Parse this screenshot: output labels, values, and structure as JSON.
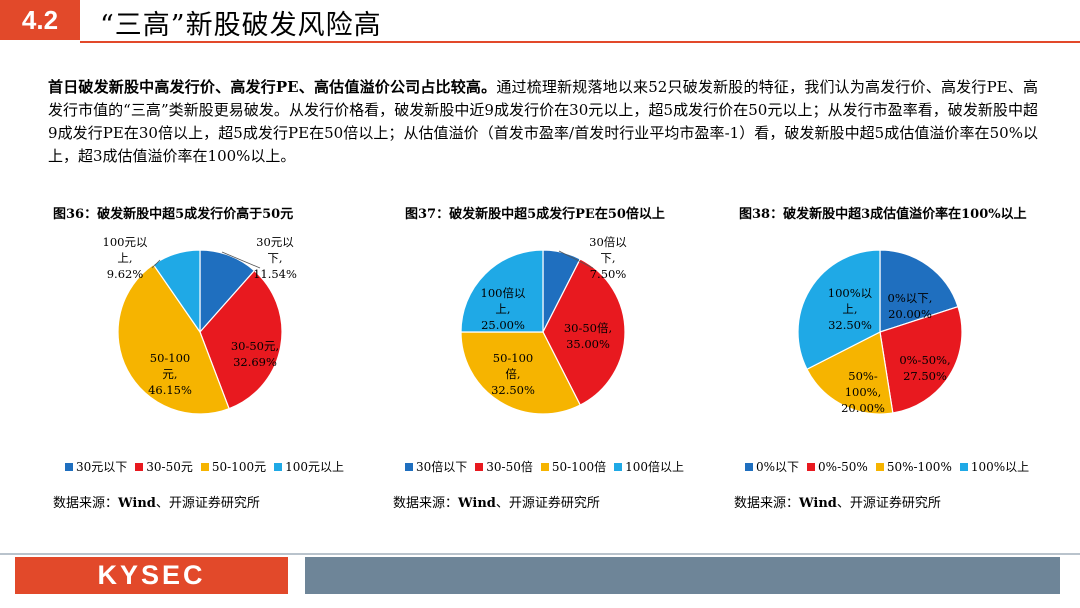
{
  "header": {
    "section_number": "4.2",
    "title": "“三高”新股破发风险高"
  },
  "intro": {
    "bold_lead": "首日破发新股中高发行价、高发行PE、高估值溢价公司占比较高。",
    "body": "通过梳理新规落地以来52只破发新股的特征，我们认为高发行价、高发行PE、高发行市值的“三高”类新股更易破发。从发行价格看，破发新股中近9成发行价在30元以上，超5成发行价在50元以上；从发行市盈率看，破发新股中超9成发行PE在30倍以上，超5成发行PE在50倍以上；从估值溢价（首发市盈率/首发时行业平均市盈率-1）看，破发新股中超5成估值溢价率在50%以上，超3成估值溢价率在100%以上。"
  },
  "colors": {
    "accent": "#e2492a",
    "footer_bar": "#6e8598",
    "series": [
      "#1f6fbf",
      "#e8191f",
      "#f6b400",
      "#1fa9e6"
    ]
  },
  "chart_data": [
    {
      "type": "pie",
      "title": "图36：破发新股中超5成发行价高于50元",
      "categories": [
        "30元以下",
        "30-50元",
        "50-100元",
        "100元以上"
      ],
      "values": [
        11.54,
        32.69,
        46.15,
        9.62
      ],
      "labels": [
        [
          "30元以",
          "下,",
          "11.54%"
        ],
        [
          "30-50元,",
          "32.69%"
        ],
        [
          "50-100",
          "元,",
          "46.15%"
        ],
        [
          "100元以",
          "上,",
          "9.62%"
        ]
      ],
      "legend": "bottom",
      "source_label": "数据来源：",
      "source_name": "Wind",
      "source_rest": "、开源证券研究所"
    },
    {
      "type": "pie",
      "title": "图37：破发新股中超5成发行PE在50倍以上",
      "categories": [
        "30倍以下",
        "30-50倍",
        "50-100倍",
        "100倍以上"
      ],
      "values": [
        7.5,
        35.0,
        32.5,
        25.0
      ],
      "labels": [
        [
          "30倍以",
          "下,",
          "7.50%"
        ],
        [
          "30-50倍,",
          "35.00%"
        ],
        [
          "50-100",
          "倍,",
          "32.50%"
        ],
        [
          "100倍以",
          "上,",
          "25.00%"
        ]
      ],
      "legend": "bottom",
      "source_label": "数据来源：",
      "source_name": "Wind",
      "source_rest": "、开源证券研究所"
    },
    {
      "type": "pie",
      "title": "图38：破发新股中超3成估值溢价率在100%以上",
      "categories": [
        "0%以下",
        "0%-50%",
        "50%-100%",
        "100%以上"
      ],
      "values": [
        20.0,
        27.5,
        20.0,
        32.5
      ],
      "labels": [
        [
          "0%以下,",
          "20.00%"
        ],
        [
          "0%-50%,",
          "27.50%"
        ],
        [
          "50%-",
          "100%,",
          "20.00%"
        ],
        [
          "100%以",
          "上,",
          "32.50%"
        ]
      ],
      "legend": "bottom",
      "source_label": "数据来源：",
      "source_name": "Wind",
      "source_rest": "、开源证券研究所"
    }
  ],
  "footer": {
    "logo_text": "KYSEC"
  }
}
